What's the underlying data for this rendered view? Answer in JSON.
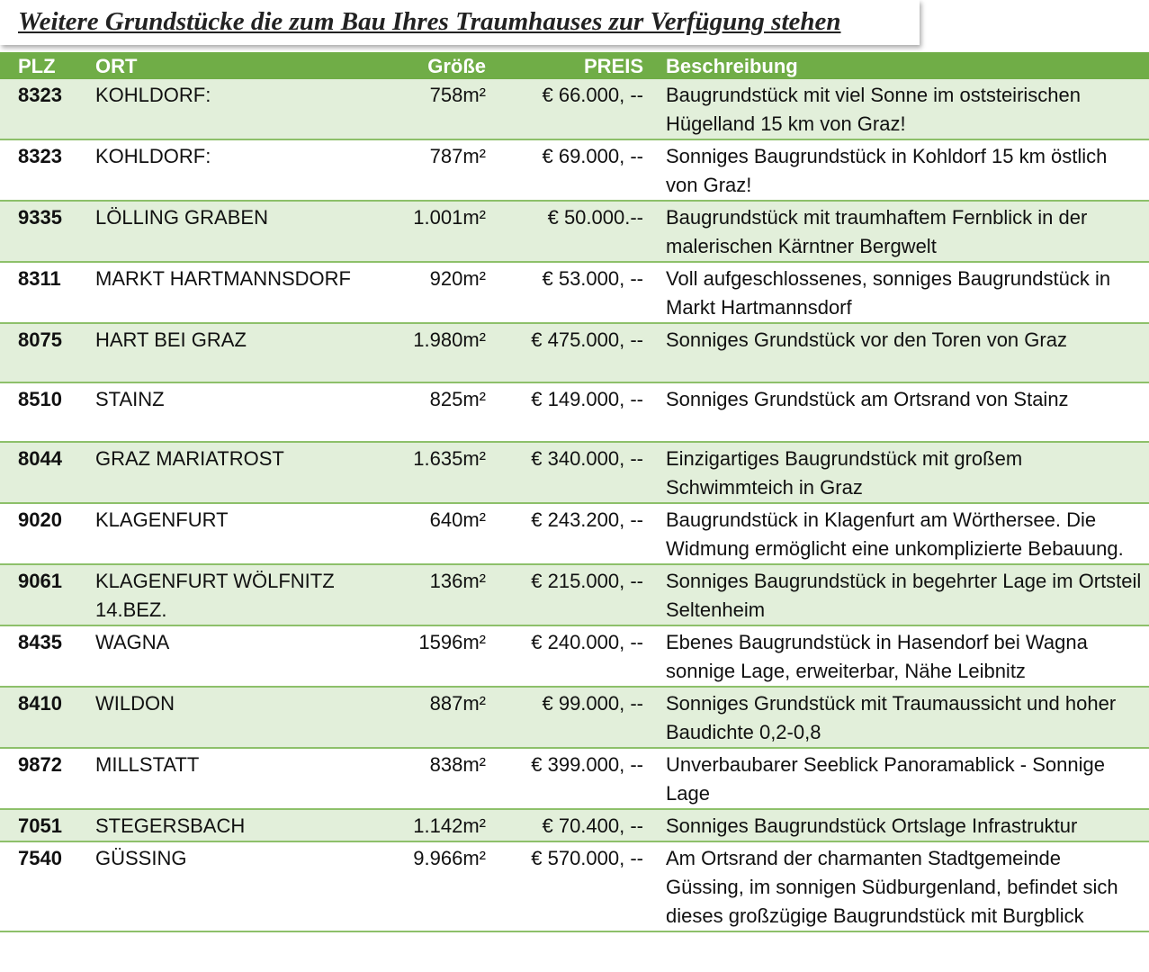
{
  "title": "Weitere Grundstücke die zum Bau Ihres Traumhauses zur Verfügung stehen",
  "table": {
    "header": [
      "PLZ",
      "ORT",
      "Größe",
      "PREIS",
      "Beschreibung"
    ],
    "rows": [
      [
        "8323",
        "KOHLDORF:",
        "758m²",
        "€ 66.000, --",
        "Baugrundstück mit viel Sonne im oststeirischen Hügelland 15 km von Graz!"
      ],
      [
        "8323",
        "KOHLDORF:",
        "787m²",
        "€ 69.000, --",
        "Sonniges Baugrundstück in Kohldorf 15 km östlich von Graz!"
      ],
      [
        "9335",
        "LÖLLING GRABEN",
        "1.001m²",
        "€ 50.000.--",
        "Baugrundstück mit traumhaftem Fernblick in der malerischen Kärntner Bergwelt"
      ],
      [
        "8311",
        "MARKT HARTMANNSDORF",
        "920m²",
        "€ 53.000, --",
        "Voll aufgeschlossenes, sonniges Baugrundstück in Markt Hartmannsdorf"
      ],
      [
        "8075",
        "HART BEI GRAZ",
        "1.980m²",
        "€ 475.000, --",
        "Sonniges Grundstück vor den Toren von Graz"
      ],
      [
        "8510",
        "STAINZ",
        "825m²",
        "€ 149.000, --",
        "Sonniges Grundstück am Ortsrand von Stainz"
      ],
      [
        "8044",
        "GRAZ MARIATROST",
        "1.635m²",
        "€ 340.000, --",
        "Einzigartiges Baugrundstück mit großem Schwimmteich in Graz"
      ],
      [
        "9020",
        "KLAGENFURT",
        "640m²",
        "€ 243.200, --",
        "Baugrundstück in Klagenfurt am Wörthersee. Die Widmung ermöglicht eine unkomplizierte Bebauung."
      ],
      [
        "9061",
        "KLAGENFURT WÖLFNITZ 14.BEZ.",
        "136m²",
        "€ 215.000, --",
        "Sonniges Baugrundstück in begehrter Lage im Ortsteil Seltenheim"
      ],
      [
        "8435",
        "WAGNA",
        "1596m²",
        "€ 240.000, --",
        "Ebenes Baugrundstück in Hasendorf bei Wagna sonnige Lage, erweiterbar, Nähe Leibnitz"
      ],
      [
        "8410",
        "WILDON",
        "887m²",
        "€ 99.000, --",
        "Sonniges Grundstück mit Traumaussicht und hoher Baudichte 0,2-0,8"
      ],
      [
        "9872",
        "MILLSTATT",
        "838m²",
        "€ 399.000, --",
        "Unverbaubarer Seeblick Panoramablick - Sonnige Lage"
      ],
      [
        "7051",
        "STEGERSBACH",
        "1.142m²",
        "€ 70.400, --",
        "Sonniges Baugrundstück Ortslage Infrastruktur"
      ],
      [
        "7540",
        "GÜSSING",
        "9.966m²",
        "€ 570.000, --",
        "Am Ortsrand der charmanten Stadtgemeinde Güssing, im sonnigen Südburgenland, befindet sich dieses großzügige Baugrundstück mit Burgblick"
      ]
    ]
  }
}
